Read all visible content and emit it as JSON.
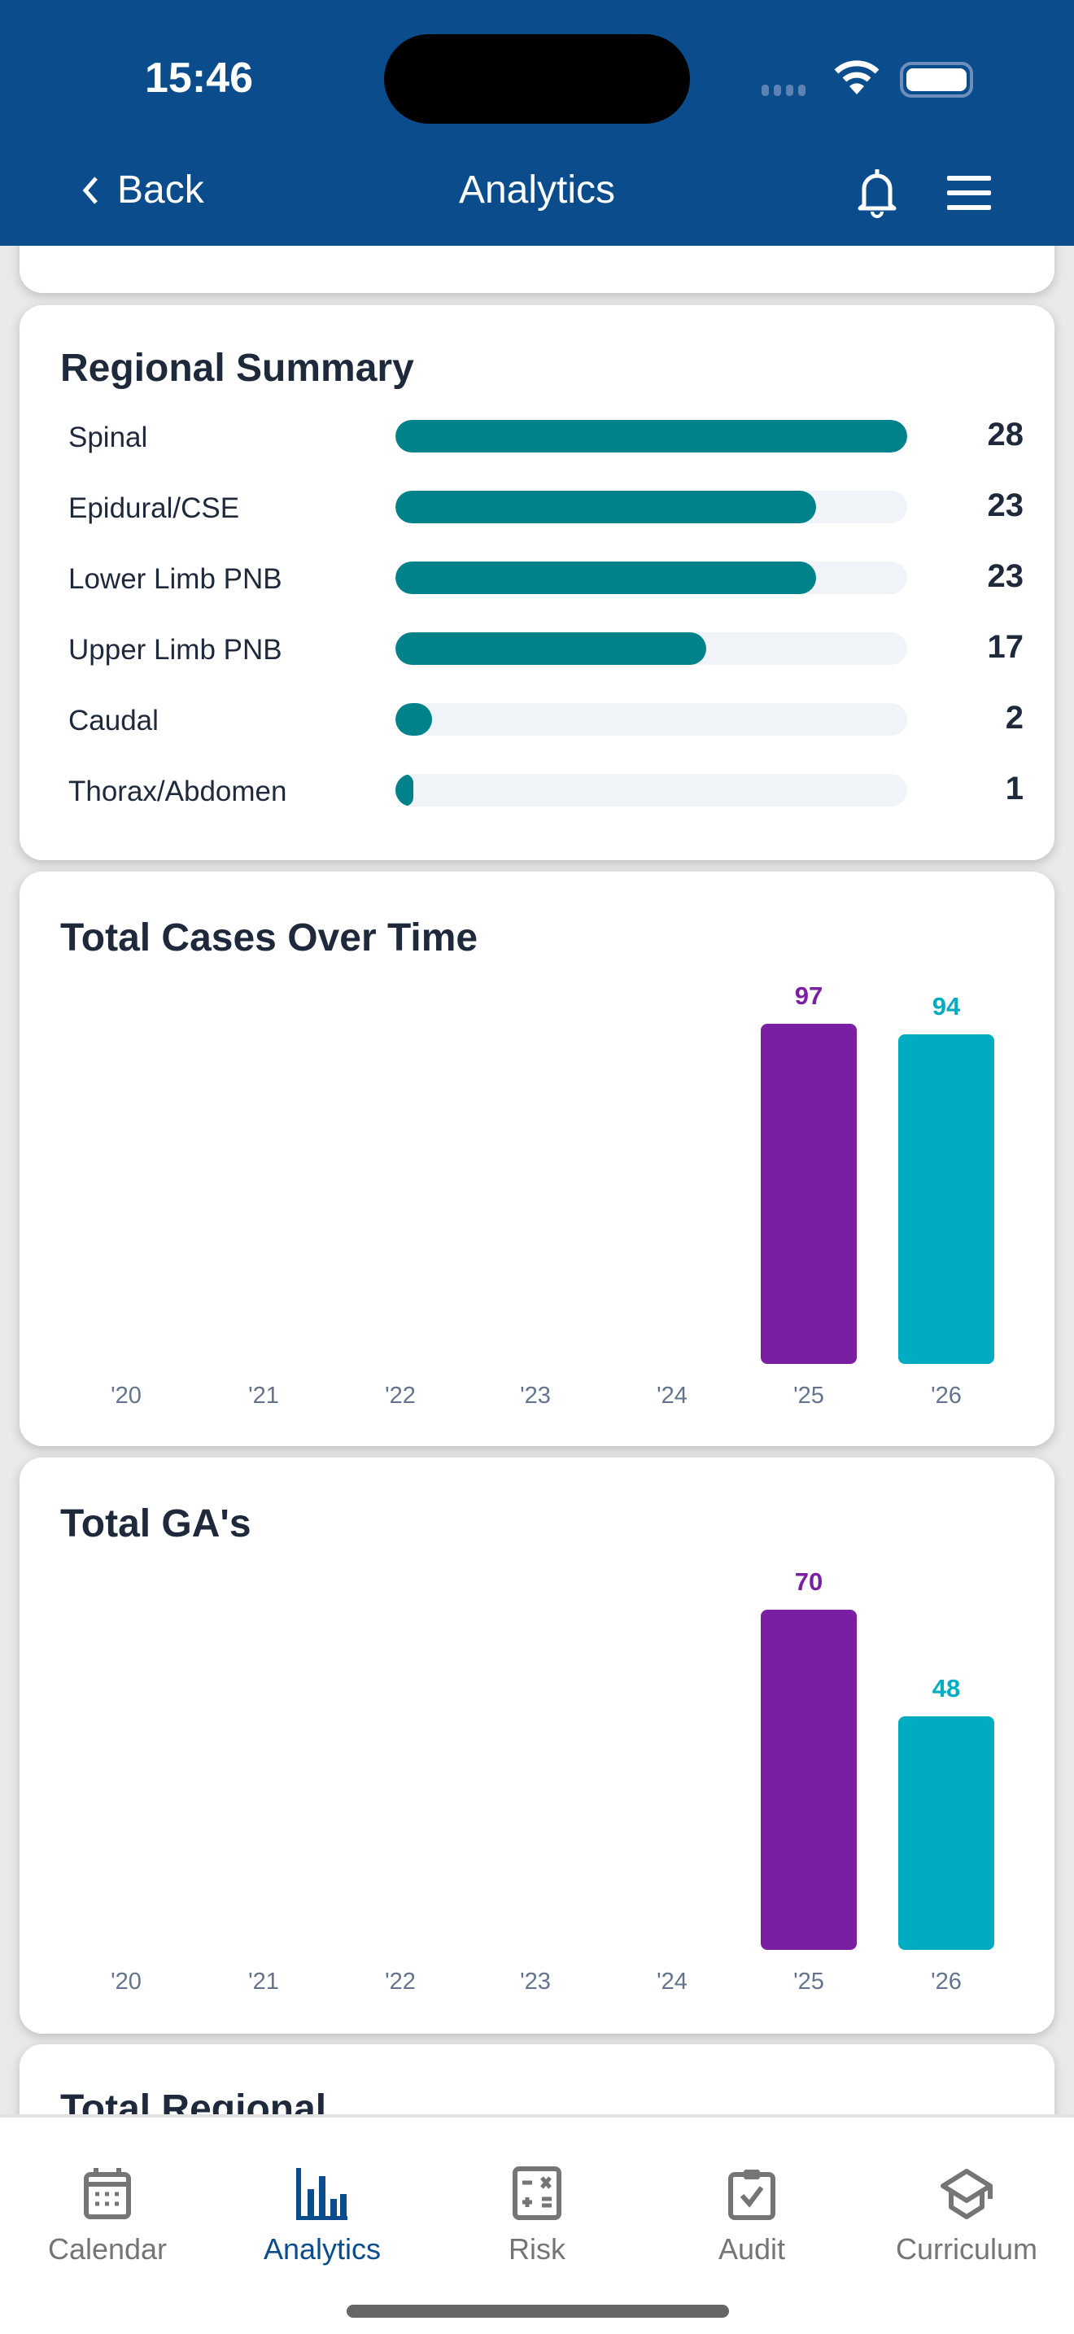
{
  "status_bar": {
    "time": "15:46"
  },
  "header": {
    "back_label": "Back",
    "title": "Analytics",
    "icons": [
      "bell-icon",
      "menu-icon"
    ]
  },
  "regional_summary": {
    "title": "Regional Summary",
    "bar_color": "#00828a",
    "items": [
      {
        "label": "Spinal",
        "value": 28
      },
      {
        "label": "Epidural/CSE",
        "value": 23
      },
      {
        "label": "Lower Limb PNB",
        "value": 23
      },
      {
        "label": "Upper Limb PNB",
        "value": 17
      },
      {
        "label": "Caudal",
        "value": 2
      },
      {
        "label": "Thorax/Abdomen",
        "value": 1
      }
    ]
  },
  "chart_data": [
    {
      "type": "bar",
      "title": "Total Cases Over Time",
      "categories": [
        "'20",
        "'21",
        "'22",
        "'23",
        "'24",
        "'25",
        "'26"
      ],
      "values": [
        null,
        null,
        null,
        null,
        null,
        97,
        94
      ],
      "colors": {
        "'25": "#7b1fa2",
        "'26": "#00acc1"
      }
    },
    {
      "type": "bar",
      "title": "Total GA's",
      "categories": [
        "'20",
        "'21",
        "'22",
        "'23",
        "'24",
        "'25",
        "'26"
      ],
      "values": [
        null,
        null,
        null,
        null,
        null,
        70,
        48
      ],
      "colors": {
        "'25": "#7b1fa2",
        "'26": "#00acc1"
      }
    }
  ],
  "next_card": {
    "title": "Total Regional"
  },
  "bottom_nav": {
    "items": [
      {
        "label": "Calendar",
        "icon": "calendar-icon"
      },
      {
        "label": "Analytics",
        "icon": "bar-chart-icon",
        "active": true
      },
      {
        "label": "Risk",
        "icon": "calculator-icon"
      },
      {
        "label": "Audit",
        "icon": "clipboard-check-icon"
      },
      {
        "label": "Curriculum",
        "icon": "graduation-cap-icon"
      }
    ]
  }
}
